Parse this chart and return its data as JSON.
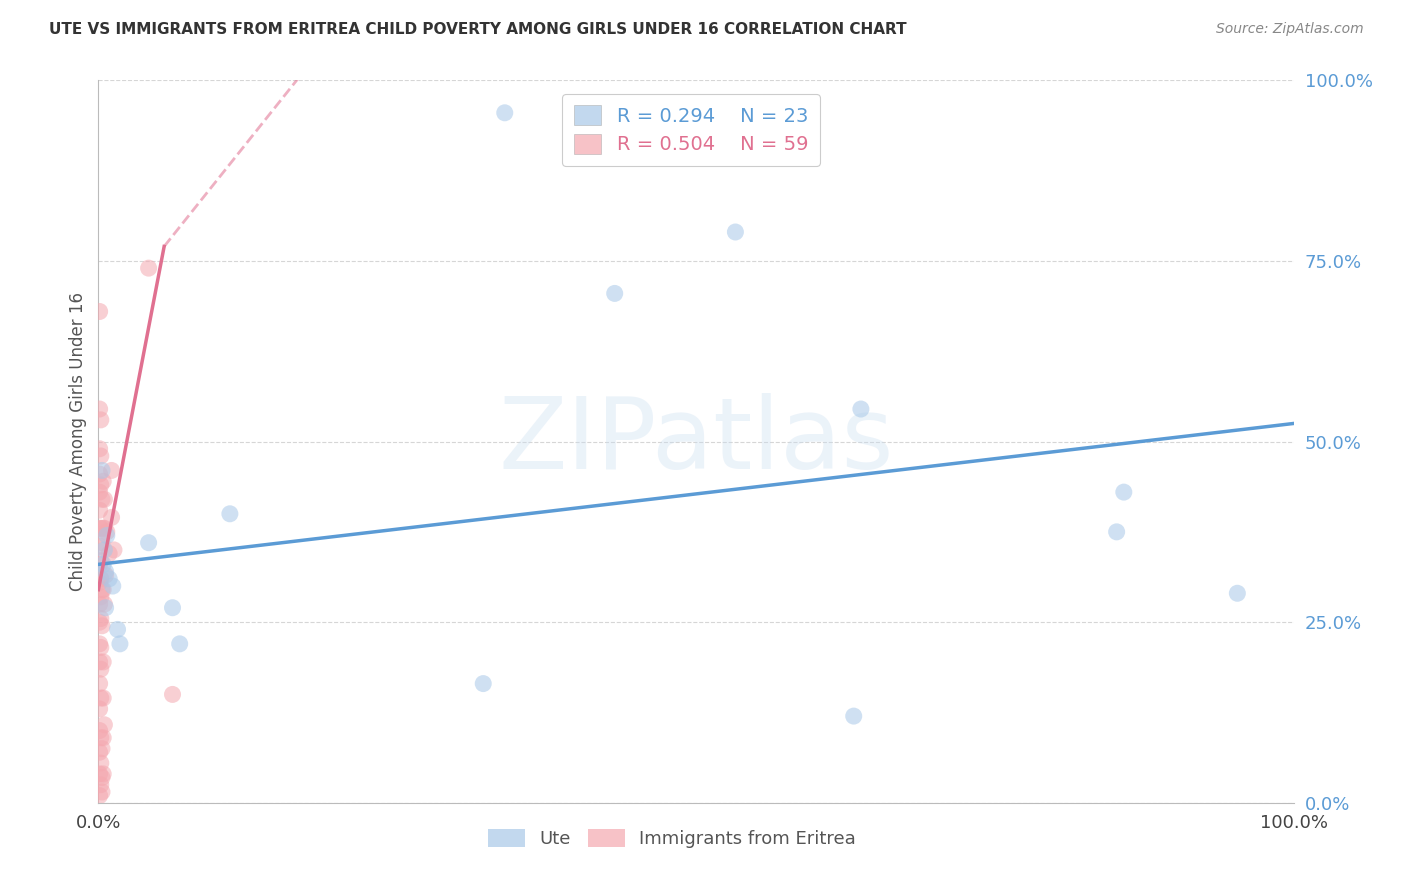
{
  "title": "UTE VS IMMIGRANTS FROM ERITREA CHILD POVERTY AMONG GIRLS UNDER 16 CORRELATION CHART",
  "source": "Source: ZipAtlas.com",
  "ylabel": "Child Poverty Among Girls Under 16",
  "watermark": "ZIPatlas",
  "legend_blue_r": "0.294",
  "legend_blue_n": "23",
  "legend_pink_r": "0.504",
  "legend_pink_n": "59",
  "legend_label_blue": "Ute",
  "legend_label_pink": "Immigrants from Eritrea",
  "xlim": [
    0,
    1.0
  ],
  "ylim": [
    0,
    1.0
  ],
  "ytick_labels": [
    "0.0%",
    "25.0%",
    "50.0%",
    "75.0%",
    "100.0%"
  ],
  "ytick_positions": [
    0.0,
    0.25,
    0.5,
    0.75,
    1.0
  ],
  "blue_color": "#a8c8e8",
  "pink_color": "#f4a8b0",
  "blue_line_color": "#5b9bd5",
  "pink_line_color": "#e07090",
  "blue_scatter": [
    [
      0.003,
      0.46
    ],
    [
      0.004,
      0.33
    ],
    [
      0.005,
      0.35
    ],
    [
      0.006,
      0.27
    ],
    [
      0.006,
      0.32
    ],
    [
      0.007,
      0.37
    ],
    [
      0.009,
      0.31
    ],
    [
      0.012,
      0.3
    ],
    [
      0.016,
      0.24
    ],
    [
      0.018,
      0.22
    ],
    [
      0.042,
      0.36
    ],
    [
      0.062,
      0.27
    ],
    [
      0.068,
      0.22
    ],
    [
      0.11,
      0.4
    ],
    [
      0.322,
      0.165
    ],
    [
      0.34,
      0.955
    ],
    [
      0.432,
      0.705
    ],
    [
      0.533,
      0.79
    ],
    [
      0.638,
      0.545
    ],
    [
      0.632,
      0.12
    ],
    [
      0.858,
      0.43
    ],
    [
      0.852,
      0.375
    ],
    [
      0.953,
      0.29
    ]
  ],
  "pink_scatter": [
    [
      0.001,
      0.68
    ],
    [
      0.001,
      0.545
    ],
    [
      0.001,
      0.49
    ],
    [
      0.001,
      0.455
    ],
    [
      0.001,
      0.43
    ],
    [
      0.001,
      0.405
    ],
    [
      0.001,
      0.38
    ],
    [
      0.001,
      0.355
    ],
    [
      0.001,
      0.33
    ],
    [
      0.001,
      0.305
    ],
    [
      0.001,
      0.275
    ],
    [
      0.001,
      0.25
    ],
    [
      0.001,
      0.22
    ],
    [
      0.001,
      0.195
    ],
    [
      0.001,
      0.165
    ],
    [
      0.001,
      0.13
    ],
    [
      0.001,
      0.1
    ],
    [
      0.001,
      0.07
    ],
    [
      0.001,
      0.04
    ],
    [
      0.001,
      0.01
    ],
    [
      0.002,
      0.44
    ],
    [
      0.002,
      0.38
    ],
    [
      0.002,
      0.335
    ],
    [
      0.002,
      0.31
    ],
    [
      0.002,
      0.285
    ],
    [
      0.002,
      0.255
    ],
    [
      0.002,
      0.215
    ],
    [
      0.002,
      0.185
    ],
    [
      0.002,
      0.145
    ],
    [
      0.002,
      0.09
    ],
    [
      0.002,
      0.055
    ],
    [
      0.002,
      0.025
    ],
    [
      0.003,
      0.295
    ],
    [
      0.003,
      0.245
    ],
    [
      0.003,
      0.075
    ],
    [
      0.003,
      0.035
    ],
    [
      0.003,
      0.015
    ],
    [
      0.004,
      0.445
    ],
    [
      0.004,
      0.38
    ],
    [
      0.004,
      0.295
    ],
    [
      0.004,
      0.195
    ],
    [
      0.004,
      0.09
    ],
    [
      0.005,
      0.42
    ],
    [
      0.005,
      0.38
    ],
    [
      0.005,
      0.275
    ],
    [
      0.006,
      0.315
    ],
    [
      0.007,
      0.375
    ],
    [
      0.009,
      0.345
    ],
    [
      0.011,
      0.46
    ],
    [
      0.011,
      0.395
    ],
    [
      0.013,
      0.35
    ],
    [
      0.042,
      0.74
    ],
    [
      0.062,
      0.15
    ],
    [
      0.002,
      0.53
    ],
    [
      0.002,
      0.48
    ],
    [
      0.003,
      0.42
    ],
    [
      0.003,
      0.36
    ],
    [
      0.004,
      0.145
    ],
    [
      0.004,
      0.04
    ],
    [
      0.005,
      0.108
    ]
  ],
  "blue_trendline": [
    [
      0.0,
      0.33
    ],
    [
      1.0,
      0.525
    ]
  ],
  "pink_trendline": [
    [
      0.0,
      0.295
    ],
    [
      0.055,
      0.77
    ]
  ],
  "pink_trendline_dashed": [
    [
      0.055,
      0.77
    ],
    [
      0.19,
      1.05
    ]
  ]
}
